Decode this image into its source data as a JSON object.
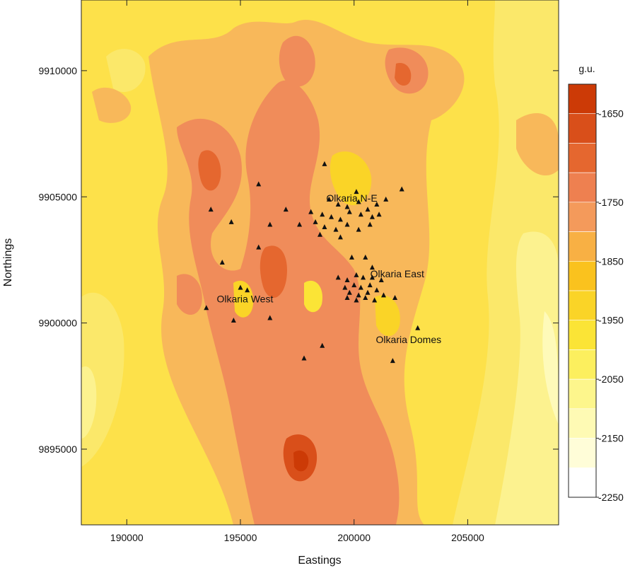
{
  "map": {
    "xlabel": "Eastings",
    "ylabel": "Northings",
    "x_range": [
      188000,
      209000
    ],
    "y_range": [
      9892000,
      9912800
    ],
    "x_ticks": [
      {
        "value": 190000,
        "label": "190000"
      },
      {
        "value": 195000,
        "label": "195000"
      },
      {
        "value": 200000,
        "label": "200000"
      },
      {
        "value": 205000,
        "label": "205000"
      }
    ],
    "y_ticks": [
      {
        "value": 9895000,
        "label": "9895000"
      },
      {
        "value": 9900000,
        "label": "9900000"
      },
      {
        "value": 9905000,
        "label": "9905000"
      },
      {
        "value": 9910000,
        "label": "9910000"
      }
    ],
    "site_labels": [
      {
        "text": "Olkaria N-E",
        "x": 199900,
        "y": 9904950
      },
      {
        "text": "Olkaria East",
        "x": 201900,
        "y": 9901950
      },
      {
        "text": "Olkaria West",
        "x": 195200,
        "y": 9900950
      },
      {
        "text": "Olkaria Domes",
        "x": 202400,
        "y": 9899350
      }
    ],
    "wells": [
      [
        198700,
        9906300
      ],
      [
        200100,
        9905200
      ],
      [
        202100,
        9905300
      ],
      [
        195800,
        9905500
      ],
      [
        198900,
        9904900
      ],
      [
        199300,
        9904700
      ],
      [
        199700,
        9904600
      ],
      [
        200200,
        9904800
      ],
      [
        200600,
        9904500
      ],
      [
        201000,
        9904700
      ],
      [
        201400,
        9904900
      ],
      [
        193700,
        9904500
      ],
      [
        197000,
        9904500
      ],
      [
        198100,
        9904400
      ],
      [
        198600,
        9904300
      ],
      [
        199000,
        9904200
      ],
      [
        199400,
        9904100
      ],
      [
        199800,
        9904400
      ],
      [
        200300,
        9904300
      ],
      [
        200800,
        9904200
      ],
      [
        201100,
        9904300
      ],
      [
        194600,
        9904000
      ],
      [
        196300,
        9903900
      ],
      [
        197600,
        9903900
      ],
      [
        198300,
        9904000
      ],
      [
        198700,
        9903800
      ],
      [
        199200,
        9903700
      ],
      [
        199700,
        9903900
      ],
      [
        200200,
        9903700
      ],
      [
        200700,
        9903900
      ],
      [
        198500,
        9903500
      ],
      [
        199400,
        9903400
      ],
      [
        195800,
        9903000
      ],
      [
        199900,
        9902600
      ],
      [
        200500,
        9902600
      ],
      [
        194200,
        9902400
      ],
      [
        200800,
        9902200
      ],
      [
        199300,
        9901800
      ],
      [
        199700,
        9901700
      ],
      [
        200100,
        9901900
      ],
      [
        200400,
        9901800
      ],
      [
        200800,
        9901800
      ],
      [
        201200,
        9901700
      ],
      [
        199600,
        9901400
      ],
      [
        200000,
        9901500
      ],
      [
        200300,
        9901400
      ],
      [
        200700,
        9901500
      ],
      [
        201000,
        9901300
      ],
      [
        195000,
        9901400
      ],
      [
        195300,
        9901300
      ],
      [
        199800,
        9901200
      ],
      [
        200200,
        9901100
      ],
      [
        200600,
        9901200
      ],
      [
        201300,
        9901100
      ],
      [
        199700,
        9901000
      ],
      [
        200100,
        9900900
      ],
      [
        200500,
        9901000
      ],
      [
        200900,
        9900900
      ],
      [
        201800,
        9901000
      ],
      [
        193500,
        9900600
      ],
      [
        196300,
        9900200
      ],
      [
        194700,
        9900100
      ],
      [
        202800,
        9899800
      ],
      [
        198600,
        9899100
      ],
      [
        197800,
        9898600
      ],
      [
        201700,
        9898500
      ]
    ],
    "colorbar": {
      "title": "g.u.",
      "levels": [
        {
          "label": "-1650",
          "color": "#cc3a06"
        },
        {
          "label": "",
          "color": "#d94f1a"
        },
        {
          "label": "",
          "color": "#e5672f"
        },
        {
          "label": "-1750",
          "color": "#ee8050"
        },
        {
          "label": "",
          "color": "#f49a5b"
        },
        {
          "label": "-1850",
          "color": "#f8b044"
        },
        {
          "label": "",
          "color": "#fac21e"
        },
        {
          "label": "-1950",
          "color": "#fad427"
        },
        {
          "label": "",
          "color": "#fbe436"
        },
        {
          "label": "-2050",
          "color": "#fcef5e"
        },
        {
          "label": "",
          "color": "#fdf68c"
        },
        {
          "label": "-2150",
          "color": "#fefab4"
        },
        {
          "label": "",
          "color": "#fffdd8"
        },
        {
          "label": "-2250",
          "color": "#ffffff"
        }
      ]
    }
  }
}
